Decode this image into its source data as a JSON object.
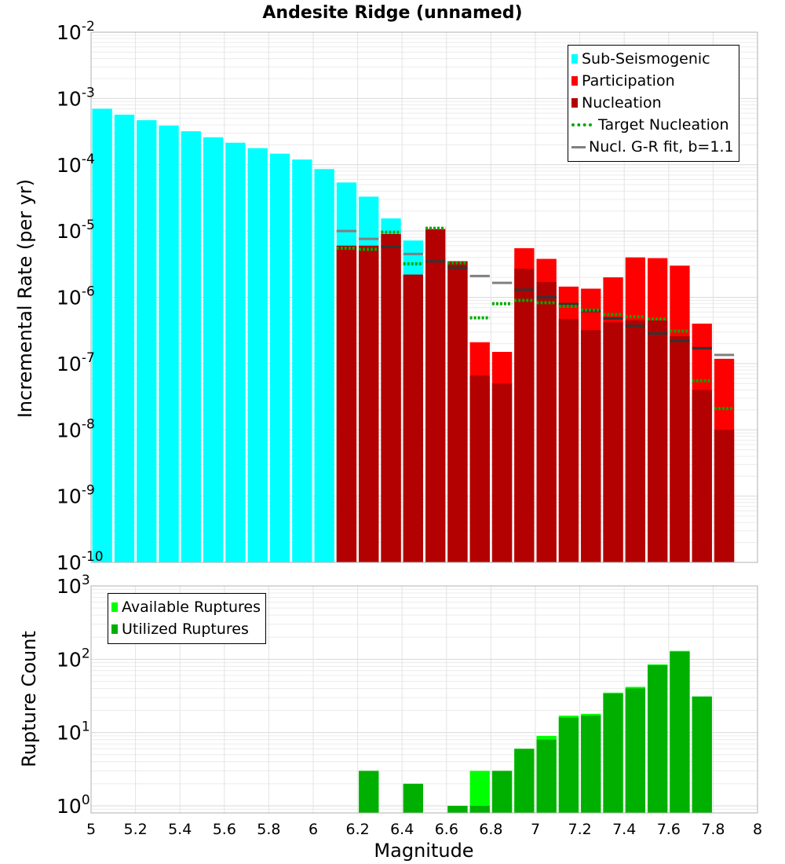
{
  "chart_data": [
    {
      "type": "bar",
      "title": "Andesite Ridge (unnamed)",
      "xlabel": "",
      "ylabel": "Incremental Rate (per yr)",
      "yscale": "log",
      "ylim": [
        1e-10,
        0.01
      ],
      "xlim": [
        5,
        8
      ],
      "ytick_exponents": [
        "-10",
        "-9",
        "-8",
        "-7",
        "-6",
        "-5",
        "-4",
        "-3",
        "-2"
      ],
      "ytick_base": "10",
      "legend": {
        "position": "top-right",
        "entries": [
          "Sub-Seismogenic",
          "Participation",
          "Nucleation",
          "Target Nucleation",
          "Nucl. G-R fit, b=1.1"
        ]
      },
      "colors": {
        "sub_seismogenic": "#00ffff",
        "participation": "#ff0000",
        "nucleation": "#b30000",
        "target_nucleation": "#00aa00",
        "gr_fit": "#808080",
        "gr_fit_overlap": "#333333"
      },
      "series": [
        {
          "name": "Sub-Seismogenic",
          "x": [
            5.05,
            5.15,
            5.25,
            5.35,
            5.45,
            5.55,
            5.65,
            5.75,
            5.85,
            5.95,
            6.05,
            6.15,
            6.25,
            6.35,
            6.45
          ],
          "values": [
            0.0007,
            0.00057,
            0.00047,
            0.00039,
            0.00032,
            0.00026,
            0.000215,
            0.000178,
            0.000147,
            0.00012,
            8.6e-05,
            5.4e-05,
            3.3e-05,
            1.55e-05,
            7.2e-06
          ]
        },
        {
          "name": "Participation",
          "x": [
            6.15,
            6.25,
            6.35,
            6.45,
            6.55,
            6.65,
            6.75,
            6.85,
            6.95,
            7.05,
            7.15,
            7.25,
            7.35,
            7.45,
            7.55,
            7.65,
            7.75,
            7.85
          ],
          "values": [
            6e-06,
            6e-06,
            9e-06,
            2.2e-06,
            1.07e-05,
            3.5e-06,
            2.1e-07,
            1.5e-07,
            5.5e-06,
            3.8e-06,
            1.45e-06,
            1.35e-06,
            2e-06,
            4e-06,
            3.9e-06,
            3e-06,
            4e-07,
            1.18e-07
          ]
        },
        {
          "name": "Nucleation",
          "x": [
            6.15,
            6.25,
            6.35,
            6.45,
            6.55,
            6.65,
            6.75,
            6.85,
            6.95,
            7.05,
            7.15,
            7.25,
            7.35,
            7.45,
            7.55,
            7.65,
            7.75,
            7.85
          ],
          "values": [
            6e-06,
            6e-06,
            9e-06,
            2.2e-06,
            1.07e-05,
            3.5e-06,
            6.6e-08,
            5e-08,
            2.7e-06,
            1.7e-06,
            4.7e-07,
            3.2e-07,
            4.2e-07,
            4.5e-07,
            4.5e-07,
            2.6e-07,
            4e-08,
            1e-08
          ]
        },
        {
          "name": "Target Nucleation",
          "x": [
            6.15,
            6.25,
            6.35,
            6.45,
            6.55,
            6.65,
            6.75,
            6.85,
            6.95,
            7.05,
            7.15,
            7.25,
            7.35,
            7.45,
            7.55,
            7.65,
            7.75,
            7.85
          ],
          "values": [
            5.5e-06,
            5.3e-06,
            9.6e-06,
            3.2e-06,
            1.1e-05,
            3.3e-06,
            4.9e-07,
            8e-07,
            9e-07,
            8.3e-07,
            7.3e-07,
            6.4e-07,
            5.5e-07,
            5.1e-07,
            4.7e-07,
            3.1e-07,
            5.5e-08,
            2.1e-08
          ]
        },
        {
          "name": "Nucl. G-R fit, b=1.1",
          "x": [
            6.15,
            6.25,
            6.35,
            6.45,
            6.55,
            6.65,
            6.75,
            6.85,
            6.95,
            7.05,
            7.15,
            7.25,
            7.35,
            7.45,
            7.55,
            7.65,
            7.75,
            7.85
          ],
          "values": [
            1e-05,
            7.6e-06,
            5.8e-06,
            4.5e-06,
            3.5e-06,
            2.8e-06,
            2.1e-06,
            1.65e-06,
            1.3e-06,
            1e-06,
            7.9e-07,
            6.2e-07,
            4.8e-07,
            3.7e-07,
            2.85e-07,
            2.2e-07,
            1.7e-07,
            1.35e-07
          ]
        }
      ]
    },
    {
      "type": "bar",
      "title": "",
      "xlabel": "Magnitude",
      "ylabel": "Rupture Count",
      "yscale": "log",
      "ylim": [
        0.8,
        1000
      ],
      "xlim": [
        5,
        8
      ],
      "xticks": [
        "5",
        "5.2",
        "5.4",
        "5.6",
        "5.8",
        "6",
        "6.2",
        "6.4",
        "6.6",
        "6.8",
        "7",
        "7.2",
        "7.4",
        "7.6",
        "7.8",
        "8"
      ],
      "ytick_exponents": [
        "0",
        "1",
        "2",
        "3"
      ],
      "ytick_base": "10",
      "legend": {
        "position": "top-left",
        "entries": [
          "Available Ruptures",
          "Utilized Ruptures"
        ]
      },
      "colors": {
        "available": "#00ff00",
        "utilized": "#00b000"
      },
      "series": [
        {
          "name": "Available Ruptures",
          "x": [
            6.25,
            6.45,
            6.65,
            6.75,
            6.85,
            6.95,
            7.05,
            7.15,
            7.25,
            7.35,
            7.45,
            7.55,
            7.65,
            7.75
          ],
          "values": [
            3,
            2,
            1,
            3,
            3,
            6,
            9,
            17,
            18,
            35,
            42,
            85,
            130,
            31
          ]
        },
        {
          "name": "Utilized Ruptures",
          "x": [
            6.25,
            6.45,
            6.65,
            6.75,
            6.85,
            6.95,
            7.05,
            7.15,
            7.25,
            7.35,
            7.45,
            7.55,
            7.65,
            7.75
          ],
          "values": [
            3,
            2,
            1,
            1,
            3,
            6,
            8,
            16,
            17,
            34,
            40,
            83,
            127,
            31
          ]
        }
      ]
    }
  ]
}
